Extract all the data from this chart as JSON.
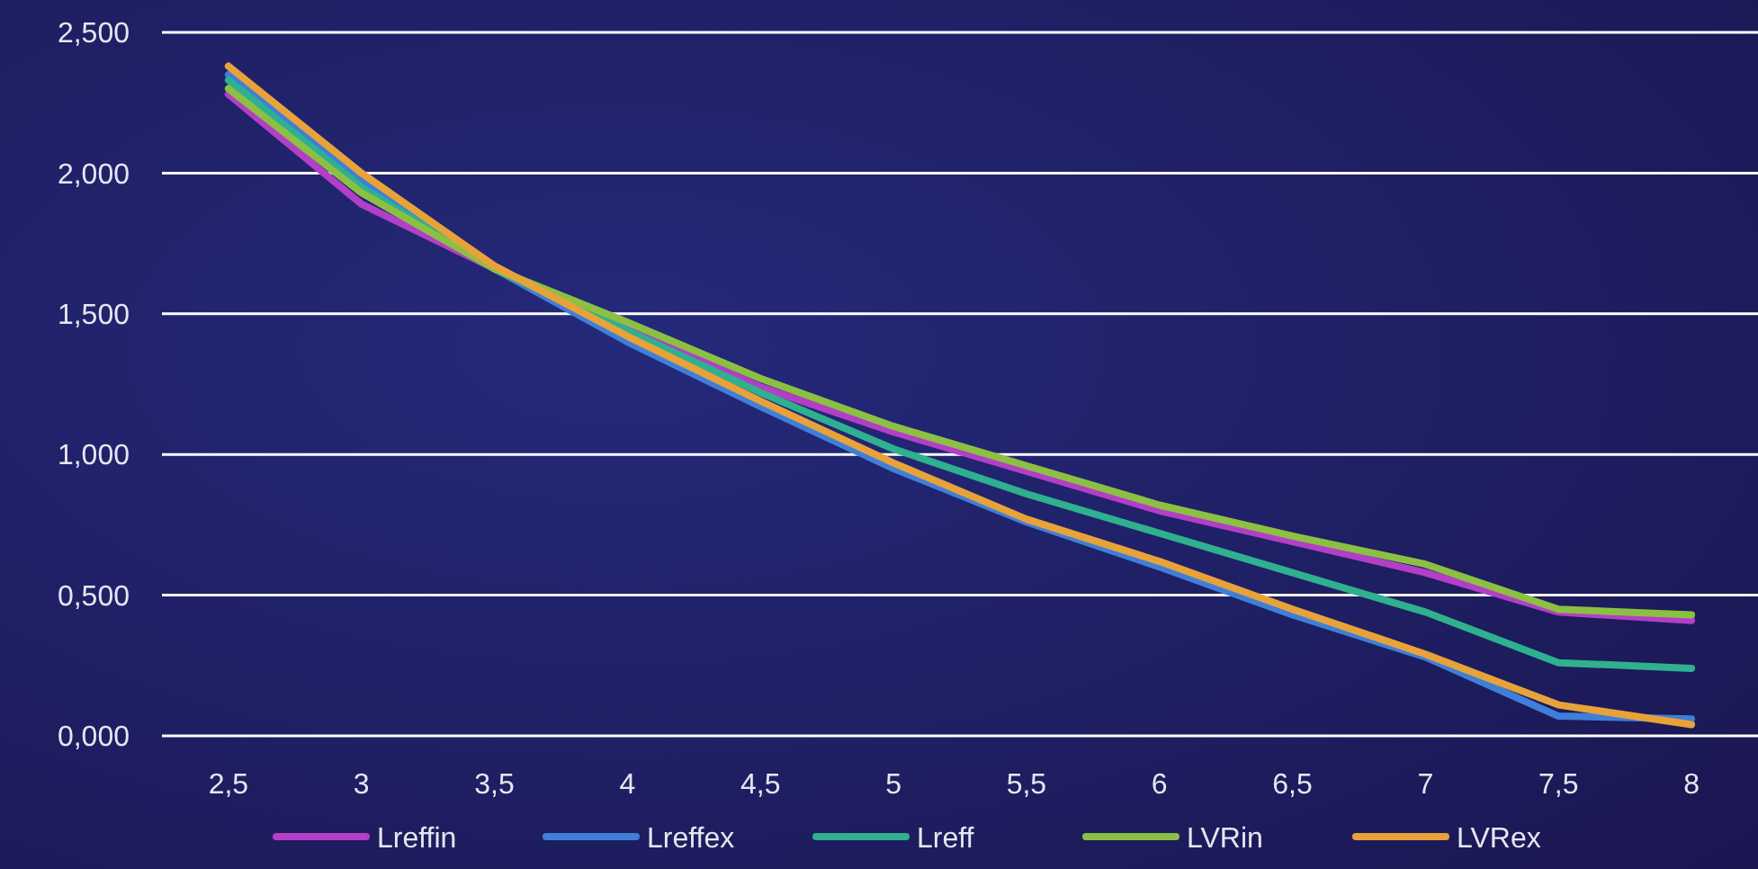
{
  "chart_data": {
    "type": "line",
    "categories": [
      "2,5",
      "3",
      "3,5",
      "4",
      "4,5",
      "5",
      "5,5",
      "6",
      "6,5",
      "7",
      "7,5",
      "8"
    ],
    "series": [
      {
        "name": "Lreffin",
        "color": "#b23fc6",
        "values": [
          2.28,
          1.89,
          1.66,
          1.45,
          1.24,
          1.08,
          0.94,
          0.8,
          0.69,
          0.58,
          0.44,
          0.41
        ]
      },
      {
        "name": "Lreffex",
        "color": "#3f7fd9",
        "values": [
          2.35,
          1.97,
          1.66,
          1.4,
          1.17,
          0.95,
          0.76,
          0.6,
          0.43,
          0.28,
          0.07,
          0.06
        ]
      },
      {
        "name": "Lreff",
        "color": "#2fb08f",
        "values": [
          2.33,
          1.95,
          1.66,
          1.44,
          1.22,
          1.02,
          0.86,
          0.72,
          0.58,
          0.44,
          0.26,
          0.24
        ]
      },
      {
        "name": "LVRin",
        "color": "#8cc043",
        "values": [
          2.3,
          1.93,
          1.66,
          1.47,
          1.27,
          1.1,
          0.96,
          0.82,
          0.71,
          0.61,
          0.45,
          0.43
        ]
      },
      {
        "name": "LVRex",
        "color": "#e8a23a",
        "values": [
          2.38,
          2.0,
          1.67,
          1.42,
          1.19,
          0.97,
          0.77,
          0.62,
          0.45,
          0.29,
          0.11,
          0.04
        ]
      }
    ],
    "ylim": [
      0,
      2.5
    ],
    "yticks": [
      {
        "value": 0,
        "label": "0,000"
      },
      {
        "value": 0.5,
        "label": "0,500"
      },
      {
        "value": 1,
        "label": "1,000"
      },
      {
        "value": 1.5,
        "label": "1,500"
      },
      {
        "value": 2,
        "label": "2,000"
      },
      {
        "value": 2.5,
        "label": "2,500"
      }
    ],
    "grid": "y",
    "legend": "bottom",
    "marker": "none",
    "line_style": "solid"
  }
}
